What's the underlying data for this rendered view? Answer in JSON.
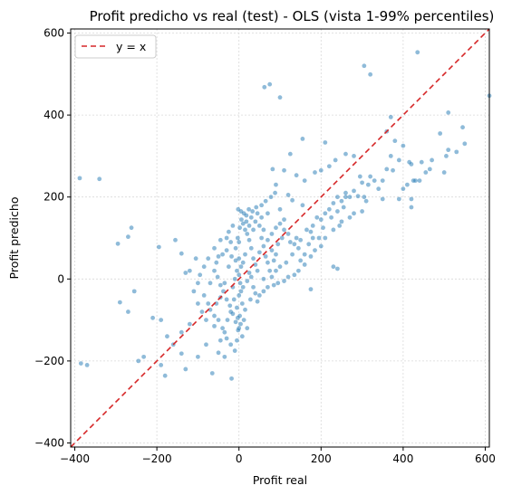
{
  "chart_data": {
    "type": "scatter",
    "title": "Profit predicho vs real (test) - OLS (vista 1-99% percentiles)",
    "xlabel": "Profit real",
    "ylabel": "Profit predicho",
    "xlim": [
      -410,
      610
    ],
    "ylim": [
      -410,
      610
    ],
    "xticks": [
      -400,
      -200,
      0,
      200,
      400,
      600
    ],
    "yticks": [
      -400,
      -200,
      0,
      200,
      400,
      600
    ],
    "xtick_labels": [
      "−400",
      "−200",
      "0",
      "200",
      "400",
      "600"
    ],
    "ytick_labels": [
      "−400",
      "−200",
      "0",
      "200",
      "400",
      "600"
    ],
    "grid": true,
    "legend_position": "top-left",
    "series": [
      {
        "type": "scatter",
        "color": "#1f77b4",
        "points": [
          [
            -388,
            246
          ],
          [
            -340,
            244
          ],
          [
            -385,
            -206
          ],
          [
            -370,
            -210
          ],
          [
            -295,
            86
          ],
          [
            -270,
            103
          ],
          [
            -262,
            125
          ],
          [
            -255,
            -30
          ],
          [
            -290,
            -57
          ],
          [
            -270,
            -80
          ],
          [
            -245,
            -200
          ],
          [
            -232,
            -190
          ],
          [
            -195,
            78
          ],
          [
            -155,
            95
          ],
          [
            -140,
            62
          ],
          [
            -130,
            15
          ],
          [
            -120,
            20
          ],
          [
            -105,
            50
          ],
          [
            -210,
            -95
          ],
          [
            -190,
            -100
          ],
          [
            -175,
            -140
          ],
          [
            -160,
            -160
          ],
          [
            -140,
            -130
          ],
          [
            -120,
            -110
          ],
          [
            -190,
            -210
          ],
          [
            -180,
            -236
          ],
          [
            -130,
            -220
          ],
          [
            -140,
            -182
          ],
          [
            -100,
            -190
          ],
          [
            -80,
            -160
          ],
          [
            -65,
            -230
          ],
          [
            -50,
            -180
          ],
          [
            -35,
            -190
          ],
          [
            -18,
            -243
          ],
          [
            -110,
            -30
          ],
          [
            -100,
            -60
          ],
          [
            -90,
            -80
          ],
          [
            -80,
            -100
          ],
          [
            -60,
            -115
          ],
          [
            -55,
            -60
          ],
          [
            -45,
            -45
          ],
          [
            -70,
            -10
          ],
          [
            -60,
            20
          ],
          [
            -55,
            40
          ],
          [
            -50,
            55
          ],
          [
            -40,
            60
          ],
          [
            -30,
            70
          ],
          [
            -20,
            90
          ],
          [
            -25,
            30
          ],
          [
            -35,
            -10
          ],
          [
            -15,
            -20
          ],
          [
            -10,
            0
          ],
          [
            -5,
            20
          ],
          [
            -8,
            45
          ],
          [
            -12,
            -50
          ],
          [
            -20,
            -80
          ],
          [
            -28,
            -100
          ],
          [
            -35,
            -130
          ],
          [
            -45,
            -150
          ],
          [
            -2,
            170
          ],
          [
            5,
            165
          ],
          [
            10,
            135
          ],
          [
            15,
            120
          ],
          [
            62,
            468
          ],
          [
            75,
            475
          ],
          [
            100,
            443
          ],
          [
            155,
            342
          ],
          [
            125,
            305
          ],
          [
            82,
            268
          ],
          [
            110,
            265
          ],
          [
            140,
            253
          ],
          [
            90,
            230
          ],
          [
            120,
            205
          ],
          [
            130,
            192
          ],
          [
            100,
            170
          ],
          [
            70,
            160
          ],
          [
            55,
            150
          ],
          [
            40,
            140
          ],
          [
            160,
            240
          ],
          [
            185,
            260
          ],
          [
            200,
            265
          ],
          [
            220,
            275
          ],
          [
            235,
            290
          ],
          [
            210,
            333
          ],
          [
            260,
            305
          ],
          [
            280,
            300
          ],
          [
            305,
            520
          ],
          [
            320,
            499
          ],
          [
            435,
            553
          ],
          [
            610,
            447
          ],
          [
            510,
            406
          ],
          [
            490,
            355
          ],
          [
            510,
            315
          ],
          [
            505,
            300
          ],
          [
            545,
            370
          ],
          [
            465,
            268
          ],
          [
            420,
            280
          ],
          [
            415,
            285
          ],
          [
            370,
            300
          ],
          [
            375,
            265
          ],
          [
            390,
            290
          ],
          [
            400,
            325
          ],
          [
            360,
            360
          ],
          [
            380,
            337
          ],
          [
            370,
            395
          ],
          [
            360,
            268
          ],
          [
            340,
            220
          ],
          [
            330,
            240
          ],
          [
            315,
            230
          ],
          [
            295,
            250
          ],
          [
            290,
            202
          ],
          [
            305,
            200
          ],
          [
            270,
            200
          ],
          [
            260,
            210
          ],
          [
            250,
            190
          ],
          [
            240,
            200
          ],
          [
            230,
            185
          ],
          [
            220,
            170
          ],
          [
            200,
            145
          ],
          [
            190,
            150
          ],
          [
            210,
            160
          ],
          [
            180,
            130
          ],
          [
            175,
            115
          ],
          [
            165,
            120
          ],
          [
            155,
            180
          ],
          [
            150,
            95
          ],
          [
            145,
            75
          ],
          [
            140,
            100
          ],
          [
            135,
            85
          ],
          [
            125,
            90
          ],
          [
            120,
            110
          ],
          [
            110,
            120
          ],
          [
            105,
            100
          ],
          [
            95,
            85
          ],
          [
            90,
            60
          ],
          [
            85,
            45
          ],
          [
            80,
            70
          ],
          [
            75,
            20
          ],
          [
            70,
            40
          ],
          [
            65,
            55
          ],
          [
            60,
            80
          ],
          [
            55,
            100
          ],
          [
            50,
            65
          ],
          [
            45,
            20
          ],
          [
            40,
            35
          ],
          [
            35,
            50
          ],
          [
            30,
            75
          ],
          [
            25,
            95
          ],
          [
            20,
            110
          ],
          [
            15,
            60
          ],
          [
            10,
            40
          ],
          [
            5,
            30
          ],
          [
            0,
            10
          ],
          [
            0,
            50
          ],
          [
            0,
            90
          ],
          [
            3,
            -10
          ],
          [
            5,
            -30
          ],
          [
            8,
            -60
          ],
          [
            2,
            -90
          ],
          [
            4,
            -110
          ],
          [
            0,
            -120
          ],
          [
            -3,
            -95
          ],
          [
            -5,
            -70
          ],
          [
            0,
            -40
          ],
          [
            10,
            -20
          ],
          [
            20,
            -5
          ],
          [
            25,
            15
          ],
          [
            30,
            5
          ],
          [
            35,
            -20
          ],
          [
            40,
            -35
          ],
          [
            28,
            -50
          ],
          [
            15,
            -75
          ],
          [
            12,
            -100
          ],
          [
            20,
            -120
          ],
          [
            8,
            -140
          ],
          [
            260,
            200
          ],
          [
            255,
            175
          ],
          [
            240,
            165
          ],
          [
            225,
            150
          ],
          [
            205,
            125
          ],
          [
            195,
            100
          ],
          [
            180,
            100
          ],
          [
            170,
            85
          ],
          [
            160,
            60
          ],
          [
            150,
            45
          ],
          [
            130,
            60
          ],
          [
            115,
            40
          ],
          [
            100,
            30
          ],
          [
            90,
            20
          ],
          [
            80,
            5
          ],
          [
            175,
            -25
          ],
          [
            230,
            30
          ],
          [
            240,
            25
          ],
          [
            280,
            215
          ],
          [
            300,
            235
          ],
          [
            320,
            250
          ],
          [
            350,
            240
          ],
          [
            400,
            220
          ],
          [
            410,
            230
          ],
          [
            425,
            240
          ],
          [
            440,
            240
          ],
          [
            420,
            195
          ],
          [
            390,
            195
          ],
          [
            350,
            195
          ],
          [
            310,
            190
          ],
          [
            420,
            175
          ],
          [
            300,
            165
          ],
          [
            280,
            160
          ],
          [
            270,
            150
          ],
          [
            250,
            140
          ],
          [
            245,
            130
          ],
          [
            230,
            120
          ],
          [
            210,
            100
          ],
          [
            200,
            80
          ],
          [
            185,
            70
          ],
          [
            175,
            55
          ],
          [
            160,
            35
          ],
          [
            145,
            20
          ],
          [
            135,
            10
          ],
          [
            120,
            5
          ],
          [
            110,
            -5
          ],
          [
            95,
            -10
          ],
          [
            85,
            -15
          ],
          [
            70,
            -20
          ],
          [
            60,
            -30
          ],
          [
            50,
            -40
          ],
          [
            45,
            -55
          ],
          [
            60,
            0
          ],
          [
            70,
            95
          ],
          [
            80,
            110
          ],
          [
            90,
            125
          ],
          [
            100,
            135
          ],
          [
            110,
            145
          ],
          [
            60,
            120
          ],
          [
            50,
            130
          ],
          [
            35,
            120
          ],
          [
            25,
            130
          ],
          [
            18,
            140
          ],
          [
            30,
            150
          ],
          [
            45,
            160
          ],
          [
            -15,
            130
          ],
          [
            -25,
            115
          ],
          [
            -30,
            100
          ],
          [
            -45,
            95
          ],
          [
            -60,
            75
          ],
          [
            -75,
            50
          ],
          [
            -85,
            30
          ],
          [
            -95,
            10
          ],
          [
            -100,
            -10
          ],
          [
            -85,
            -40
          ],
          [
            -75,
            -60
          ],
          [
            -70,
            -75
          ],
          [
            -60,
            -90
          ],
          [
            -50,
            -100
          ],
          [
            -40,
            -120
          ],
          [
            -30,
            -145
          ],
          [
            -20,
            -160
          ],
          [
            -10,
            -175
          ],
          [
            -5,
            -150
          ],
          [
            -2,
            -125
          ],
          [
            -8,
            -105
          ],
          [
            -15,
            -85
          ],
          [
            -22,
            -65
          ],
          [
            -30,
            -50
          ],
          [
            -38,
            -30
          ],
          [
            -45,
            -15
          ],
          [
            -52,
            5
          ],
          [
            -18,
            55
          ],
          [
            -8,
            75
          ],
          [
            -3,
            100
          ],
          [
            2,
            125
          ],
          [
            6,
            145
          ],
          [
            12,
            160
          ],
          [
            18,
            155
          ],
          [
            24,
            170
          ],
          [
            33,
            165
          ],
          [
            42,
            175
          ],
          [
            55,
            180
          ],
          [
            65,
            190
          ],
          [
            78,
            200
          ],
          [
            88,
            210
          ],
          [
            500,
            260
          ],
          [
            550,
            330
          ],
          [
            530,
            310
          ],
          [
            470,
            290
          ],
          [
            455,
            260
          ],
          [
            445,
            285
          ],
          [
            430,
            240
          ]
        ]
      }
    ],
    "reference_line": {
      "label": "y = x",
      "color": "#d62728",
      "style": "dashed",
      "from": [
        -410,
        -410
      ],
      "to": [
        610,
        610
      ]
    }
  }
}
